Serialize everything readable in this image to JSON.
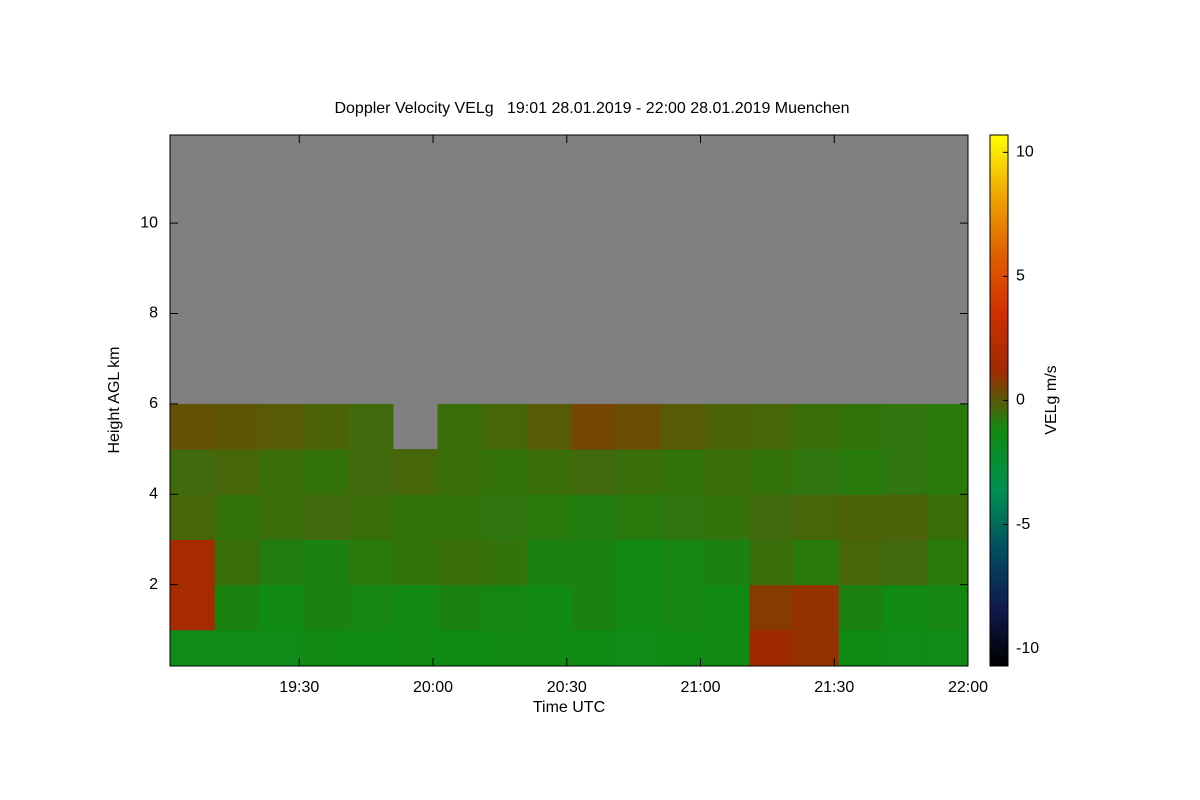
{
  "chart_data": {
    "type": "heatmap",
    "title": "Doppler Velocity VELg   19:01 28.01.2019 - 22:00 28.01.2019 Muenchen",
    "x_label": "Time UTC",
    "y_label": "Height AGL km",
    "colorbar_label": "VELg m/s",
    "x": [
      1146,
      1156,
      1166,
      1176,
      1186,
      1196,
      1206,
      1216,
      1226,
      1236,
      1246,
      1256,
      1266,
      1276,
      1286,
      1296,
      1306,
      1316
    ],
    "y": [
      0.5,
      1.5,
      2.5,
      3.5,
      4.5,
      5.5,
      6.5,
      7.5,
      8.5,
      9.5,
      10.5,
      11.5
    ],
    "z": [
      [
        -1.5,
        -1.5,
        -1.5,
        -1.2,
        -1.3,
        -1.2,
        -1.3,
        -1.2,
        -1.2,
        -1.3,
        -1.5,
        -1.3,
        -1.2,
        1.2,
        1.0,
        -1.3,
        -1.5,
        -1.4
      ],
      [
        1.5,
        -1.0,
        -1.2,
        -1.0,
        -1.1,
        -1.2,
        -1.0,
        -1.1,
        -1.2,
        -1.0,
        -1.2,
        -1.1,
        -1.2,
        0.8,
        1.0,
        -1.0,
        -1.2,
        -1.1
      ],
      [
        1.6,
        -0.5,
        -0.9,
        -1.0,
        -0.8,
        -0.6,
        -0.5,
        -0.6,
        -1.0,
        -1.0,
        -1.2,
        -1.1,
        -1.0,
        -0.5,
        -0.8,
        -0.3,
        -0.4,
        -0.8
      ],
      [
        -0.3,
        -0.6,
        -0.5,
        -0.4,
        -0.5,
        -0.6,
        -0.6,
        -0.7,
        -0.8,
        -0.9,
        -0.8,
        -0.7,
        -0.6,
        -0.4,
        -0.3,
        -0.2,
        -0.2,
        -0.5
      ],
      [
        -0.4,
        -0.3,
        -0.5,
        -0.6,
        -0.4,
        -0.3,
        -0.5,
        -0.6,
        -0.5,
        -0.4,
        -0.5,
        -0.6,
        -0.5,
        -0.6,
        -0.7,
        -0.8,
        -0.7,
        -0.8
      ],
      [
        0.2,
        0.1,
        0.0,
        -0.2,
        -0.4,
        null,
        -0.5,
        -0.3,
        0.0,
        0.5,
        0.3,
        0.0,
        -0.2,
        -0.3,
        -0.5,
        -0.6,
        -0.7,
        -0.8
      ],
      [
        null,
        null,
        null,
        null,
        null,
        null,
        null,
        null,
        null,
        null,
        null,
        null,
        null,
        null,
        null,
        null,
        null,
        null
      ],
      [
        null,
        null,
        null,
        null,
        null,
        null,
        null,
        null,
        null,
        null,
        null,
        null,
        null,
        null,
        null,
        null,
        null,
        null
      ],
      [
        null,
        null,
        null,
        null,
        null,
        null,
        null,
        null,
        null,
        null,
        null,
        null,
        null,
        null,
        null,
        null,
        null,
        null
      ],
      [
        null,
        null,
        null,
        null,
        null,
        null,
        null,
        null,
        null,
        null,
        null,
        null,
        null,
        null,
        null,
        null,
        null,
        null
      ],
      [
        null,
        null,
        null,
        null,
        null,
        null,
        null,
        null,
        null,
        null,
        null,
        null,
        null,
        null,
        null,
        null,
        null,
        null
      ],
      [
        null,
        null,
        null,
        null,
        null,
        null,
        null,
        null,
        null,
        null,
        null,
        null,
        null,
        null,
        null,
        null,
        null,
        null
      ]
    ],
    "xlim": [
      1141,
      1320
    ],
    "xticks": [
      {
        "value": 1170,
        "label": "19:30"
      },
      {
        "value": 1200,
        "label": "20:00"
      },
      {
        "value": 1230,
        "label": "20:30"
      },
      {
        "value": 1260,
        "label": "21:00"
      },
      {
        "value": 1290,
        "label": "21:30"
      },
      {
        "value": 1320,
        "label": "22:00"
      }
    ],
    "ylim": [
      0.2,
      11.95
    ],
    "yticks": [
      2,
      4,
      6,
      8,
      10
    ],
    "zlim": [
      -10.7,
      10.7
    ],
    "zticks": [
      -10,
      -5,
      0,
      5,
      10
    ],
    "colormap": [
      "#000000",
      "#101a50",
      "#005060",
      "#009050",
      "#108a10",
      "#a02a00",
      "#d03000",
      "#e06000",
      "#f0a800",
      "#ffff00"
    ],
    "missing_color": "#808080"
  }
}
